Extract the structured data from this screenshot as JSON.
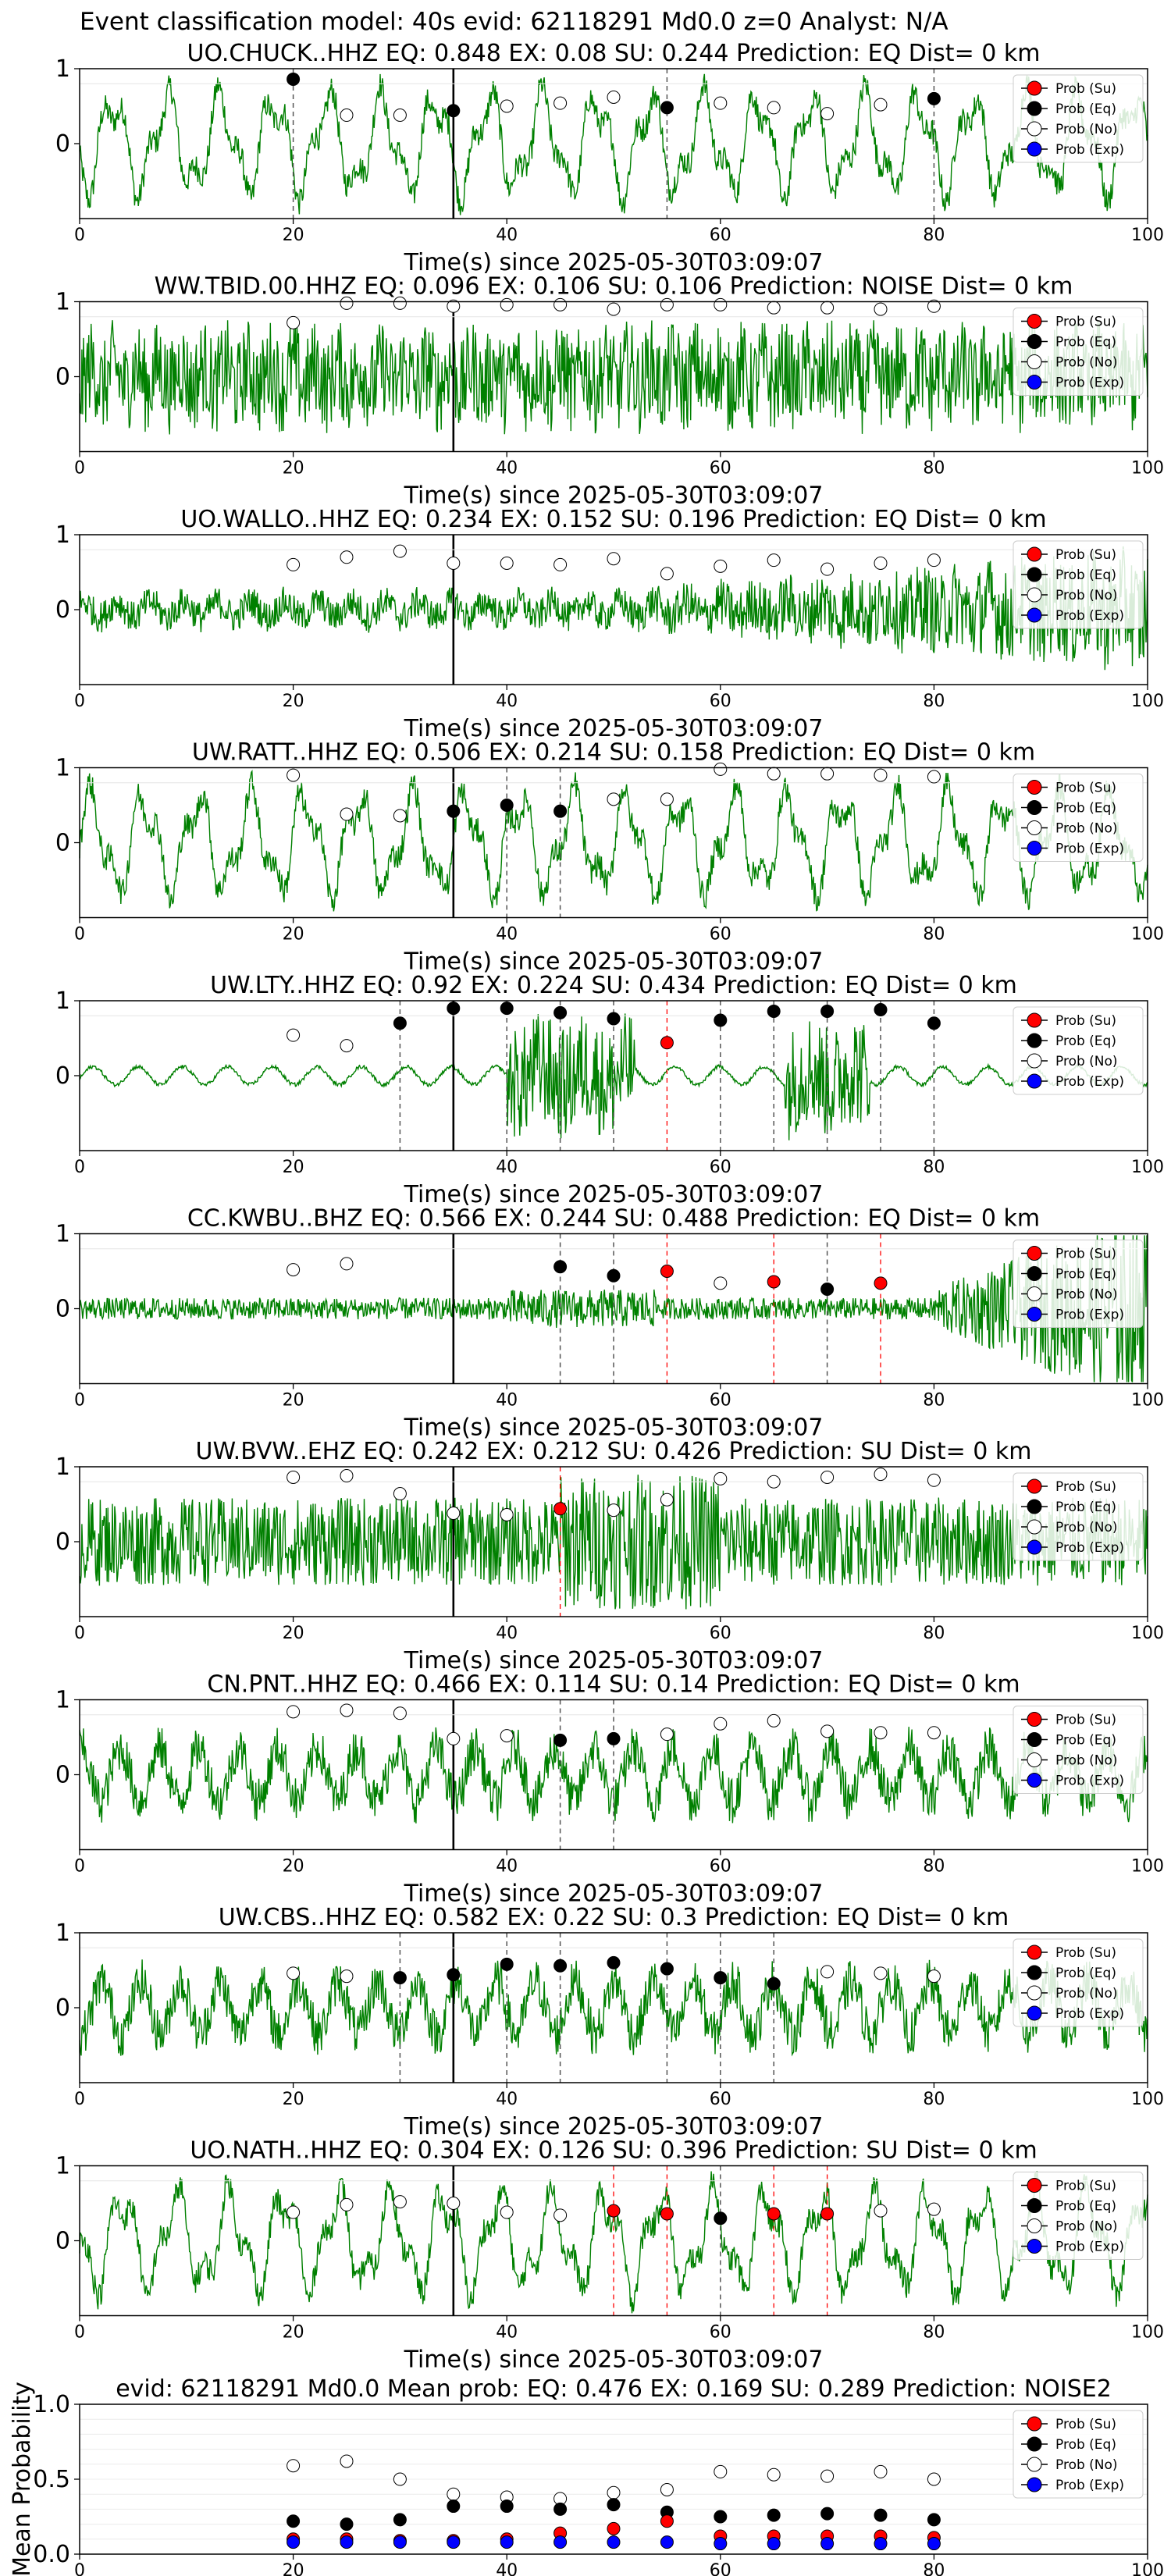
{
  "figure_title": "Event classification model: 40s evid: 62118291 Md0.0 z=0 Analyst: N/A",
  "colors": {
    "waveform": "#008000",
    "prob_su": "#ff0000",
    "prob_eq": "#000000",
    "prob_no": "#ffffff",
    "prob_exp": "#0000ff",
    "su_line": "#ff0000",
    "eq_line": "#555555",
    "origin_line": "#000000"
  },
  "legend_labels": [
    "Prob (Su)",
    "Prob (Eq)",
    "Prob (No)",
    "Prob (Exp)"
  ],
  "chart_data": [
    {
      "type": "line",
      "title": "UO.CHUCK..HHZ   EQ: 0.848  EX: 0.08  SU: 0.244   Prediction: EQ    Dist= 0 km",
      "xlabel": "Time(s) since 2025-05-30T03:09:07",
      "ylabel": "",
      "xlim": [
        0,
        100
      ],
      "ylim": [
        -1,
        1
      ],
      "xticks": [
        "0",
        "20",
        "40",
        "60",
        "80",
        "100"
      ],
      "yticks": [
        "1",
        "0"
      ],
      "legend": "top-right",
      "origin_time": 35,
      "waveform_style": "long-period",
      "eq_points": [
        [
          20,
          0.86
        ],
        [
          35,
          0.44
        ],
        [
          55,
          0.48
        ],
        [
          80,
          0.6
        ]
      ],
      "no_points": [
        [
          25,
          0.38
        ],
        [
          30,
          0.38
        ],
        [
          40,
          0.5
        ],
        [
          45,
          0.54
        ],
        [
          50,
          0.62
        ],
        [
          60,
          0.54
        ],
        [
          65,
          0.48
        ],
        [
          70,
          0.4
        ],
        [
          75,
          0.52
        ]
      ],
      "su_points": [],
      "eq_lines": [
        20,
        55,
        80
      ],
      "su_lines": []
    },
    {
      "type": "line",
      "title": "WW.TBID.00.HHZ   EQ: 0.096  EX: 0.106  SU: 0.106   Prediction: NOISE    Dist= 0 km",
      "xlabel": "Time(s) since 2025-05-30T03:09:07",
      "ylabel": "",
      "xlim": [
        0,
        100
      ],
      "ylim": [
        -1,
        1
      ],
      "xticks": [
        "0",
        "20",
        "40",
        "60",
        "80",
        "100"
      ],
      "yticks": [
        "1",
        "0"
      ],
      "legend": "top-right",
      "origin_time": 35,
      "waveform_style": "noise",
      "eq_points": [],
      "no_points": [
        [
          20,
          0.72
        ],
        [
          25,
          0.98
        ],
        [
          30,
          0.98
        ],
        [
          35,
          0.94
        ],
        [
          40,
          0.96
        ],
        [
          45,
          0.96
        ],
        [
          50,
          0.9
        ],
        [
          55,
          0.96
        ],
        [
          60,
          0.96
        ],
        [
          65,
          0.92
        ],
        [
          70,
          0.92
        ],
        [
          75,
          0.9
        ],
        [
          80,
          0.94
        ]
      ],
      "su_points": [],
      "eq_lines": [],
      "su_lines": []
    },
    {
      "type": "line",
      "title": "UO.WALLO..HHZ   EQ: 0.234  EX: 0.152  SU: 0.196   Prediction: EQ    Dist= 0 km",
      "xlabel": "Time(s) since 2025-05-30T03:09:07",
      "ylabel": "",
      "xlim": [
        0,
        100
      ],
      "ylim": [
        -1,
        1
      ],
      "xticks": [
        "0",
        "20",
        "40",
        "60",
        "80",
        "100"
      ],
      "yticks": [
        "1",
        "0"
      ],
      "legend": "top-right",
      "origin_time": 35,
      "waveform_style": "growing-noise",
      "eq_points": [],
      "no_points": [
        [
          20,
          0.6
        ],
        [
          25,
          0.7
        ],
        [
          30,
          0.78
        ],
        [
          35,
          0.62
        ],
        [
          40,
          0.62
        ],
        [
          45,
          0.6
        ],
        [
          50,
          0.68
        ],
        [
          55,
          0.48
        ],
        [
          60,
          0.58
        ],
        [
          65,
          0.66
        ],
        [
          70,
          0.54
        ],
        [
          75,
          0.62
        ],
        [
          80,
          0.66
        ]
      ],
      "su_points": [],
      "eq_lines": [],
      "su_lines": []
    },
    {
      "type": "line",
      "title": "UW.RATT..HHZ   EQ: 0.506  EX: 0.214  SU: 0.158   Prediction: EQ    Dist= 0 km",
      "xlabel": "Time(s) since 2025-05-30T03:09:07",
      "ylabel": "",
      "xlim": [
        0,
        100
      ],
      "ylim": [
        -1,
        1
      ],
      "xticks": [
        "0",
        "20",
        "40",
        "60",
        "80",
        "100"
      ],
      "yticks": [
        "1",
        "0"
      ],
      "legend": "top-right",
      "origin_time": 35,
      "waveform_style": "long-period",
      "eq_points": [
        [
          35,
          0.42
        ],
        [
          40,
          0.5
        ],
        [
          45,
          0.42
        ]
      ],
      "no_points": [
        [
          20,
          0.9
        ],
        [
          25,
          0.38
        ],
        [
          30,
          0.36
        ],
        [
          50,
          0.58
        ],
        [
          55,
          0.58
        ],
        [
          60,
          0.98
        ],
        [
          65,
          0.92
        ],
        [
          70,
          0.92
        ],
        [
          75,
          0.9
        ],
        [
          80,
          0.88
        ]
      ],
      "su_points": [],
      "eq_lines": [
        40,
        45
      ],
      "su_lines": []
    },
    {
      "type": "line",
      "title": "UW.LTY..HHZ   EQ: 0.92  EX: 0.224  SU: 0.434   Prediction: EQ    Dist= 0 km",
      "xlabel": "Time(s) since 2025-05-30T03:09:07",
      "ylabel": "",
      "xlim": [
        0,
        100
      ],
      "ylim": [
        -1,
        1
      ],
      "xticks": [
        "0",
        "20",
        "40",
        "60",
        "80",
        "100"
      ],
      "yticks": [
        "1",
        "0"
      ],
      "legend": "top-right",
      "origin_time": 35,
      "waveform_style": "quiet-burst",
      "eq_points": [
        [
          30,
          0.7
        ],
        [
          35,
          0.9
        ],
        [
          40,
          0.9
        ],
        [
          45,
          0.84
        ],
        [
          50,
          0.76
        ],
        [
          60,
          0.74
        ],
        [
          65,
          0.86
        ],
        [
          70,
          0.86
        ],
        [
          75,
          0.88
        ],
        [
          80,
          0.7
        ]
      ],
      "no_points": [
        [
          20,
          0.54
        ],
        [
          25,
          0.4
        ]
      ],
      "su_points": [
        [
          55,
          0.44
        ]
      ],
      "eq_lines": [
        30,
        40,
        45,
        50,
        60,
        65,
        70,
        75,
        80
      ],
      "su_lines": [
        55
      ]
    },
    {
      "type": "line",
      "title": "CC.KWBU..BHZ   EQ: 0.566  EX: 0.244  SU: 0.488   Prediction: EQ    Dist= 0 km",
      "xlabel": "Time(s) since 2025-05-30T03:09:07",
      "ylabel": "",
      "xlim": [
        0,
        100
      ],
      "ylim": [
        -1,
        1
      ],
      "xticks": [
        "0",
        "20",
        "40",
        "60",
        "80",
        "100"
      ],
      "yticks": [
        "1",
        "0"
      ],
      "legend": "top-right",
      "origin_time": 35,
      "waveform_style": "late-burst",
      "eq_points": [
        [
          45,
          0.56
        ],
        [
          50,
          0.44
        ],
        [
          70,
          0.26
        ]
      ],
      "no_points": [
        [
          20,
          0.52
        ],
        [
          25,
          0.6
        ],
        [
          60,
          0.34
        ]
      ],
      "su_points": [
        [
          55,
          0.5
        ],
        [
          65,
          0.36
        ],
        [
          75,
          0.34
        ]
      ],
      "eq_lines": [
        45,
        50,
        70
      ],
      "su_lines": [
        55,
        65,
        75
      ]
    },
    {
      "type": "line",
      "title": "UW.BVW..EHZ   EQ: 0.242  EX: 0.212  SU: 0.426   Prediction: SU    Dist= 0 km",
      "xlabel": "Time(s) since 2025-05-30T03:09:07",
      "ylabel": "",
      "xlim": [
        0,
        100
      ],
      "ylim": [
        -1,
        1
      ],
      "xticks": [
        "0",
        "20",
        "40",
        "60",
        "80",
        "100"
      ],
      "yticks": [
        "1",
        "0"
      ],
      "legend": "top-right",
      "origin_time": 35,
      "waveform_style": "dense",
      "eq_points": [],
      "no_points": [
        [
          20,
          0.86
        ],
        [
          25,
          0.88
        ],
        [
          30,
          0.64
        ],
        [
          35,
          0.38
        ],
        [
          40,
          0.36
        ],
        [
          50,
          0.42
        ],
        [
          55,
          0.56
        ],
        [
          60,
          0.84
        ],
        [
          65,
          0.8
        ],
        [
          70,
          0.86
        ],
        [
          75,
          0.9
        ],
        [
          80,
          0.82
        ]
      ],
      "su_points": [
        [
          45,
          0.44
        ]
      ],
      "eq_lines": [],
      "su_lines": [
        45
      ]
    },
    {
      "type": "line",
      "title": "CN.PNT..HHZ   EQ: 0.466  EX: 0.114  SU: 0.14   Prediction: EQ    Dist= 0 km",
      "xlabel": "Time(s) since 2025-05-30T03:09:07",
      "ylabel": "",
      "xlim": [
        0,
        100
      ],
      "ylim": [
        -1,
        1
      ],
      "xticks": [
        "0",
        "20",
        "40",
        "60",
        "80",
        "100"
      ],
      "yticks": [
        "1",
        "0"
      ],
      "legend": "top-right",
      "origin_time": 35,
      "waveform_style": "medium",
      "eq_points": [
        [
          45,
          0.46
        ],
        [
          50,
          0.48
        ]
      ],
      "no_points": [
        [
          20,
          0.84
        ],
        [
          25,
          0.86
        ],
        [
          30,
          0.82
        ],
        [
          35,
          0.48
        ],
        [
          40,
          0.52
        ],
        [
          55,
          0.54
        ],
        [
          60,
          0.68
        ],
        [
          65,
          0.72
        ],
        [
          70,
          0.58
        ],
        [
          75,
          0.56
        ],
        [
          80,
          0.56
        ]
      ],
      "su_points": [],
      "eq_lines": [
        45,
        50
      ],
      "su_lines": []
    },
    {
      "type": "line",
      "title": "UW.CBS..HHZ   EQ: 0.582  EX: 0.22  SU: 0.3   Prediction: EQ    Dist= 0 km",
      "xlabel": "Time(s) since 2025-05-30T03:09:07",
      "ylabel": "",
      "xlim": [
        0,
        100
      ],
      "ylim": [
        -1,
        1
      ],
      "xticks": [
        "0",
        "20",
        "40",
        "60",
        "80",
        "100"
      ],
      "yticks": [
        "1",
        "0"
      ],
      "legend": "top-right",
      "origin_time": 35,
      "waveform_style": "medium",
      "eq_points": [
        [
          30,
          0.4
        ],
        [
          35,
          0.44
        ],
        [
          40,
          0.58
        ],
        [
          45,
          0.56
        ],
        [
          50,
          0.6
        ],
        [
          55,
          0.52
        ],
        [
          60,
          0.4
        ],
        [
          65,
          0.32
        ]
      ],
      "no_points": [
        [
          20,
          0.46
        ],
        [
          25,
          0.42
        ],
        [
          70,
          0.48
        ],
        [
          75,
          0.46
        ],
        [
          80,
          0.42
        ]
      ],
      "su_points": [],
      "eq_lines": [
        30,
        40,
        45,
        55,
        60,
        65
      ],
      "su_lines": []
    },
    {
      "type": "line",
      "title": "UO.NATH..HHZ   EQ: 0.304  EX: 0.126  SU: 0.396   Prediction: SU    Dist= 0 km",
      "xlabel": "Time(s) since 2025-05-30T03:09:07",
      "ylabel": "",
      "xlim": [
        0,
        100
      ],
      "ylim": [
        -1,
        1
      ],
      "xticks": [
        "0",
        "20",
        "40",
        "60",
        "80",
        "100"
      ],
      "yticks": [
        "1",
        "0"
      ],
      "legend": "top-right",
      "origin_time": 35,
      "waveform_style": "long-period",
      "eq_points": [
        [
          60,
          0.3
        ]
      ],
      "no_points": [
        [
          20,
          0.38
        ],
        [
          25,
          0.48
        ],
        [
          30,
          0.52
        ],
        [
          35,
          0.5
        ],
        [
          40,
          0.38
        ],
        [
          45,
          0.34
        ],
        [
          75,
          0.4
        ],
        [
          80,
          0.42
        ]
      ],
      "su_points": [
        [
          50,
          0.4
        ],
        [
          55,
          0.36
        ],
        [
          65,
          0.36
        ],
        [
          70,
          0.36
        ]
      ],
      "eq_lines": [
        60
      ],
      "su_lines": [
        50,
        55,
        65,
        70
      ]
    },
    {
      "type": "scatter",
      "title": "evid: 62118291  Md0.0   Mean prob:   EQ: 0.476  EX: 0.169  SU: 0.289   Prediction: NOISE2",
      "xlabel": "",
      "ylabel": "Mean Probability",
      "xlim": [
        0,
        100
      ],
      "ylim": [
        0,
        1
      ],
      "xticks": [
        "0",
        "20",
        "40",
        "60",
        "80",
        "100"
      ],
      "yticks": [
        "0.0",
        "0.5",
        "1.0"
      ],
      "legend": "top-right",
      "x": [
        20,
        25,
        30,
        35,
        40,
        45,
        50,
        55,
        60,
        65,
        70,
        75,
        80
      ],
      "series": [
        {
          "name": "Prob (Su)",
          "values": [
            0.1,
            0.1,
            0.09,
            0.09,
            0.1,
            0.14,
            0.17,
            0.22,
            0.12,
            0.12,
            0.12,
            0.12,
            0.11
          ]
        },
        {
          "name": "Prob (Eq)",
          "values": [
            0.22,
            0.2,
            0.23,
            0.32,
            0.32,
            0.3,
            0.33,
            0.28,
            0.25,
            0.26,
            0.27,
            0.26,
            0.23
          ]
        },
        {
          "name": "Prob (No)",
          "values": [
            0.59,
            0.62,
            0.5,
            0.4,
            0.38,
            0.37,
            0.41,
            0.43,
            0.55,
            0.53,
            0.52,
            0.55,
            0.5
          ]
        },
        {
          "name": "Prob (Exp)",
          "values": [
            0.08,
            0.08,
            0.08,
            0.08,
            0.08,
            0.08,
            0.08,
            0.08,
            0.07,
            0.07,
            0.07,
            0.07,
            0.07
          ]
        }
      ]
    }
  ]
}
